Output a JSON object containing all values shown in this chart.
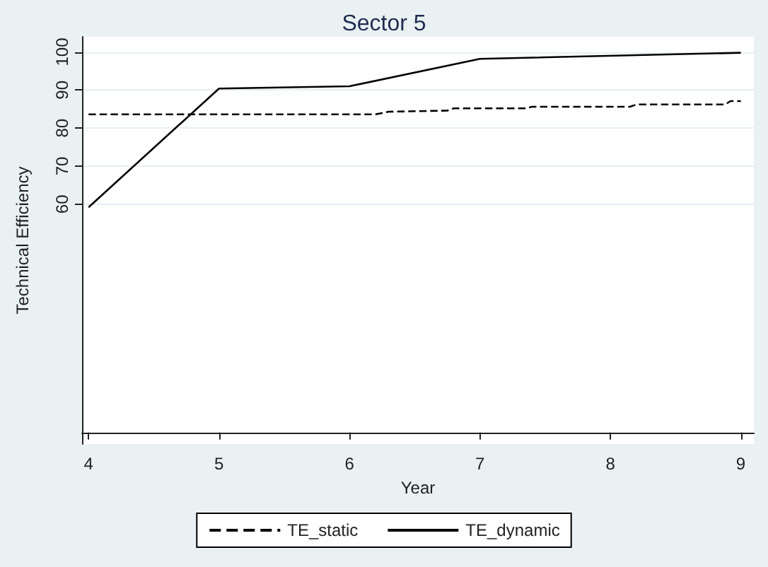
{
  "chart_data": {
    "type": "line",
    "title": "Sector 5",
    "xlabel": "Year",
    "ylabel": "Technical Efficiency",
    "xlim": [
      3.95,
      9.1
    ],
    "xticks": [
      4,
      5,
      6,
      7,
      8,
      9
    ],
    "ylim": [
      -3,
      104
    ],
    "yticks": [
      60,
      70,
      80,
      90,
      100
    ],
    "series": [
      {
        "name": "TE_static",
        "color": "#000000",
        "line_style": "dashed",
        "x": [
          4,
          5,
          6,
          6.2,
          6.3,
          6.75,
          6.8,
          7.35,
          7.4,
          8.15,
          8.2,
          8.88,
          8.92,
          9
        ],
        "values": [
          83.6,
          83.6,
          83.6,
          83.6,
          84.3,
          84.6,
          85.2,
          85.2,
          85.6,
          85.6,
          86.2,
          86.2,
          87.1,
          87.1
        ]
      },
      {
        "name": "TE_dynamic",
        "color": "#000000",
        "line_style": "solid",
        "x": [
          4,
          5,
          6,
          7,
          9
        ],
        "values": [
          59.2,
          90.4,
          91,
          98.2,
          99.8
        ]
      }
    ],
    "grid": "y",
    "legend": "bottom",
    "marker": "none"
  }
}
